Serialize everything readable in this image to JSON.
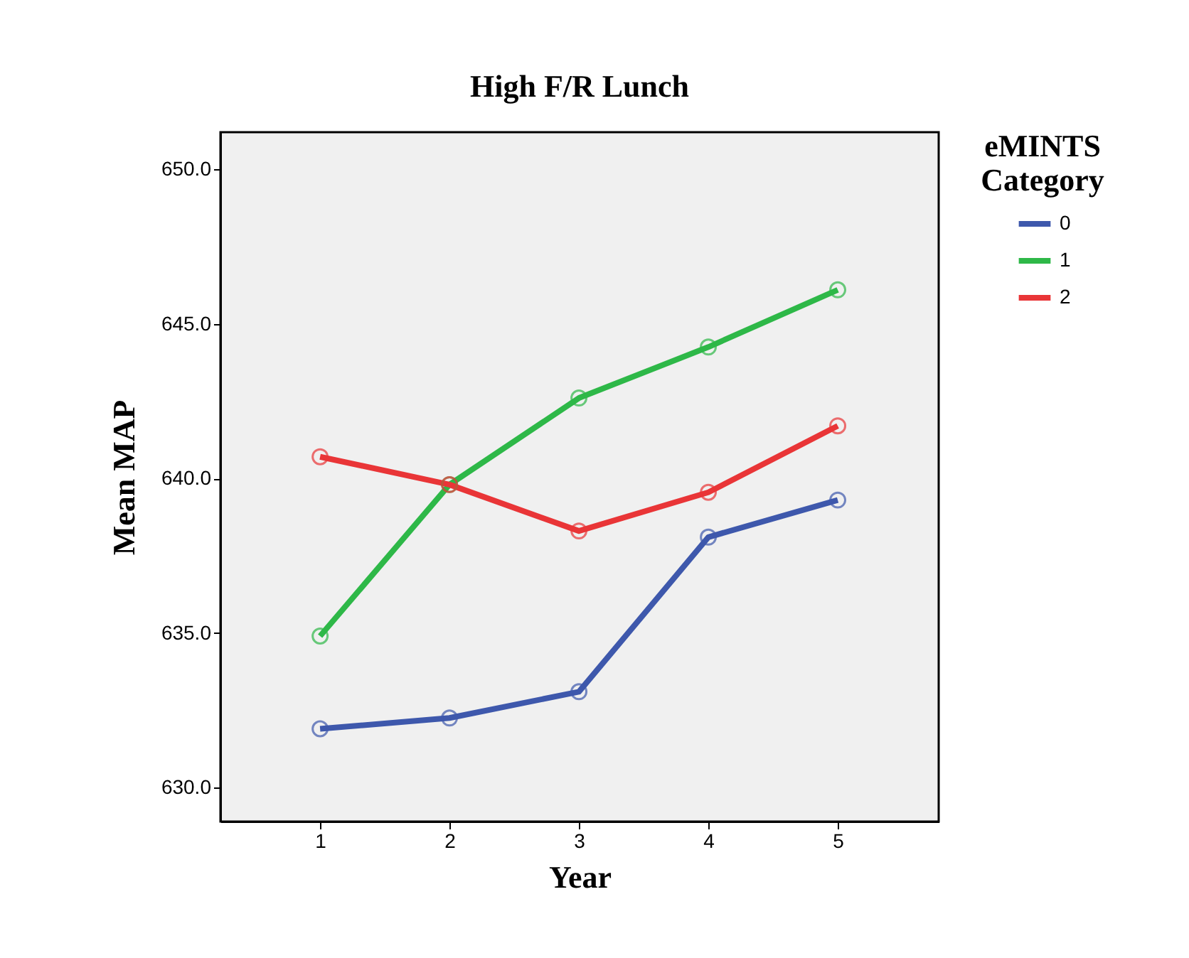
{
  "chart_data": {
    "type": "line",
    "title": "High F/R Lunch",
    "xlabel": "Year",
    "ylabel": "Mean MAP",
    "legend_title": "eMINTS Category",
    "x": [
      1,
      2,
      3,
      4,
      5
    ],
    "series": [
      {
        "name": "0",
        "color": "#3e58ac",
        "values": [
          631.9,
          632.25,
          633.1,
          638.1,
          639.3
        ]
      },
      {
        "name": "1",
        "color": "#2eb848",
        "values": [
          634.9,
          639.8,
          642.6,
          644.25,
          646.1
        ]
      },
      {
        "name": "2",
        "color": "#e93537",
        "values": [
          640.7,
          639.8,
          638.3,
          639.55,
          641.7
        ]
      }
    ],
    "xlim": [
      0.23,
      5.78
    ],
    "xticks": [
      1,
      2,
      3,
      4,
      5
    ],
    "ylim": [
      628.9,
      651.2
    ],
    "yticks": [
      {
        "value": 630,
        "label": "630.0"
      },
      {
        "value": 635,
        "label": "635.0"
      },
      {
        "value": 640,
        "label": "640.0"
      },
      {
        "value": 645,
        "label": "645.0"
      },
      {
        "value": 650,
        "label": "650.0"
      }
    ],
    "grid": false,
    "legend": "right",
    "marker": "circle",
    "line_style": "solid"
  }
}
